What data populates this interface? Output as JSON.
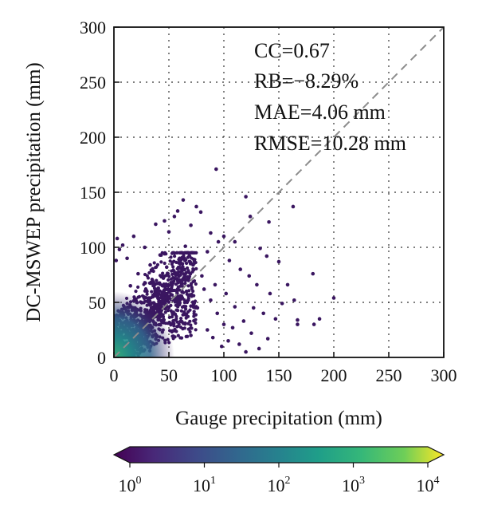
{
  "chart_data": {
    "type": "scatter",
    "xlabel": "Gauge precipitation (mm)",
    "ylabel": "DC-MSWEP precipitation (mm)",
    "xlim": [
      0,
      300
    ],
    "ylim": [
      0,
      300
    ],
    "xticks": [
      "0",
      "50",
      "100",
      "150",
      "200",
      "250",
      "300"
    ],
    "yticks": [
      "0",
      "50",
      "100",
      "150",
      "200",
      "250",
      "300"
    ],
    "grid": true,
    "reference_line": "1:1 dashed",
    "annotations": [
      "CC=0.67",
      "RB=−8.29%",
      "MAE=4.06 mm",
      "RMSE=10.28 mm"
    ],
    "colorbar": {
      "label_base": "10",
      "exponents": [
        "0",
        "1",
        "2",
        "3",
        "4"
      ],
      "colormap": "viridis",
      "scale": "log"
    },
    "colors": {
      "sparse_point": "#3a1660",
      "dense_core": "#35b779",
      "reference_line": "#8c8c8c",
      "grid": "#333333"
    },
    "points": [
      [
        93,
        171
      ],
      [
        120,
        146
      ],
      [
        124,
        128
      ],
      [
        163,
        137
      ],
      [
        141,
        123
      ],
      [
        100,
        110
      ],
      [
        110,
        105
      ],
      [
        133,
        99
      ],
      [
        139,
        92
      ],
      [
        150,
        87
      ],
      [
        158,
        66
      ],
      [
        164,
        52
      ],
      [
        167,
        34
      ],
      [
        167,
        30
      ],
      [
        181,
        76
      ],
      [
        187,
        35
      ],
      [
        200,
        54
      ],
      [
        182,
        30
      ],
      [
        63,
        143
      ],
      [
        75,
        137
      ],
      [
        58,
        133
      ],
      [
        55,
        128
      ],
      [
        79,
        132
      ],
      [
        46,
        124
      ],
      [
        38,
        121
      ],
      [
        50,
        114
      ],
      [
        70,
        120
      ],
      [
        88,
        113
      ],
      [
        95,
        105
      ],
      [
        85,
        96
      ],
      [
        65,
        101
      ],
      [
        105,
        88
      ],
      [
        115,
        80
      ],
      [
        123,
        74
      ],
      [
        130,
        66
      ],
      [
        142,
        58
      ],
      [
        153,
        49
      ],
      [
        127,
        45
      ],
      [
        136,
        40
      ],
      [
        147,
        35
      ],
      [
        118,
        33
      ],
      [
        108,
        27
      ],
      [
        125,
        22
      ],
      [
        140,
        17
      ],
      [
        114,
        12
      ],
      [
        98,
        10
      ],
      [
        132,
        8
      ],
      [
        120,
        5
      ],
      [
        3,
        108
      ],
      [
        5,
        98
      ],
      [
        2,
        88
      ],
      [
        8,
        102
      ],
      [
        12,
        90
      ],
      [
        18,
        110
      ],
      [
        28,
        100
      ],
      [
        33,
        84
      ],
      [
        22,
        76
      ],
      [
        42,
        93
      ],
      [
        48,
        82
      ],
      [
        60,
        90
      ],
      [
        72,
        84
      ],
      [
        80,
        74
      ],
      [
        92,
        66
      ],
      [
        102,
        58
      ],
      [
        88,
        52
      ],
      [
        76,
        45
      ],
      [
        94,
        40
      ],
      [
        110,
        46
      ],
      [
        100,
        30
      ],
      [
        85,
        25
      ],
      [
        70,
        20
      ],
      [
        90,
        18
      ],
      [
        104,
        15
      ],
      [
        60,
        70
      ],
      [
        52,
        62
      ],
      [
        45,
        72
      ],
      [
        36,
        68
      ],
      [
        66,
        60
      ],
      [
        82,
        62
      ],
      [
        58,
        52
      ],
      [
        40,
        55
      ],
      [
        30,
        60
      ],
      [
        25,
        50
      ],
      [
        15,
        65
      ]
    ]
  }
}
